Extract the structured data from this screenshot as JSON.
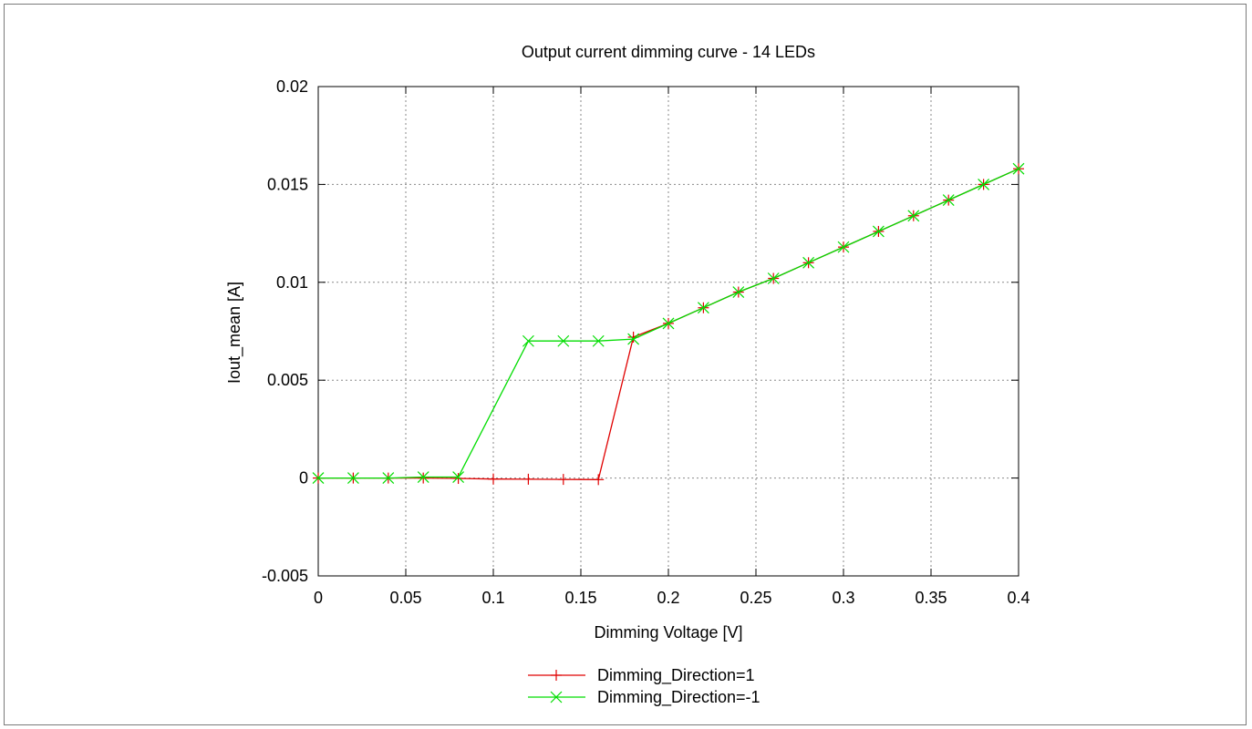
{
  "chart_data": {
    "type": "line",
    "title": "Output current dimming curve - 14 LEDs",
    "xlabel": "Dimming Voltage [V]",
    "ylabel": "Iout_mean [A]",
    "xlim": [
      0,
      0.4
    ],
    "ylim": [
      -0.005,
      0.02
    ],
    "x_ticks": [
      0,
      0.05,
      0.1,
      0.15,
      0.2,
      0.25,
      0.3,
      0.35,
      0.4
    ],
    "x_tick_labels": [
      "0",
      "0.05",
      "0.1",
      "0.15",
      "0.2",
      "0.25",
      "0.3",
      "0.35",
      "0.4"
    ],
    "y_ticks": [
      -0.005,
      0,
      0.005,
      0.01,
      0.015,
      0.02
    ],
    "y_tick_labels": [
      "-0.005",
      "0",
      "0.005",
      "0.01",
      "0.015",
      "0.02"
    ],
    "grid": true,
    "legend_position": "bottom-center",
    "series": [
      {
        "name": "Dimming_Direction=1",
        "color": "#e00000",
        "marker": "plus",
        "x": [
          0,
          0.02,
          0.04,
          0.06,
          0.08,
          0.1,
          0.12,
          0.14,
          0.16,
          0.18,
          0.2,
          0.22,
          0.24,
          0.26,
          0.28,
          0.3,
          0.32,
          0.34,
          0.36,
          0.38,
          0.4
        ],
        "y": [
          0,
          0,
          0,
          0,
          -2e-05,
          -5e-05,
          -6e-05,
          -7e-05,
          -8e-05,
          0.0072,
          0.0079,
          0.0087,
          0.0095,
          0.0102,
          0.011,
          0.0118,
          0.0126,
          0.0134,
          0.0142,
          0.015,
          0.0158
        ]
      },
      {
        "name": "Dimming_Direction=-1",
        "color": "#00dd00",
        "marker": "cross",
        "x": [
          0,
          0.02,
          0.04,
          0.06,
          0.08,
          0.12,
          0.14,
          0.16,
          0.18,
          0.2,
          0.22,
          0.24,
          0.26,
          0.28,
          0.3,
          0.32,
          0.34,
          0.36,
          0.38,
          0.4
        ],
        "y": [
          0,
          0,
          0,
          5e-05,
          5e-05,
          0.007,
          0.007,
          0.007,
          0.0071,
          0.0079,
          0.0087,
          0.0095,
          0.0102,
          0.011,
          0.0118,
          0.0126,
          0.0134,
          0.0142,
          0.015,
          0.0158
        ]
      }
    ]
  }
}
